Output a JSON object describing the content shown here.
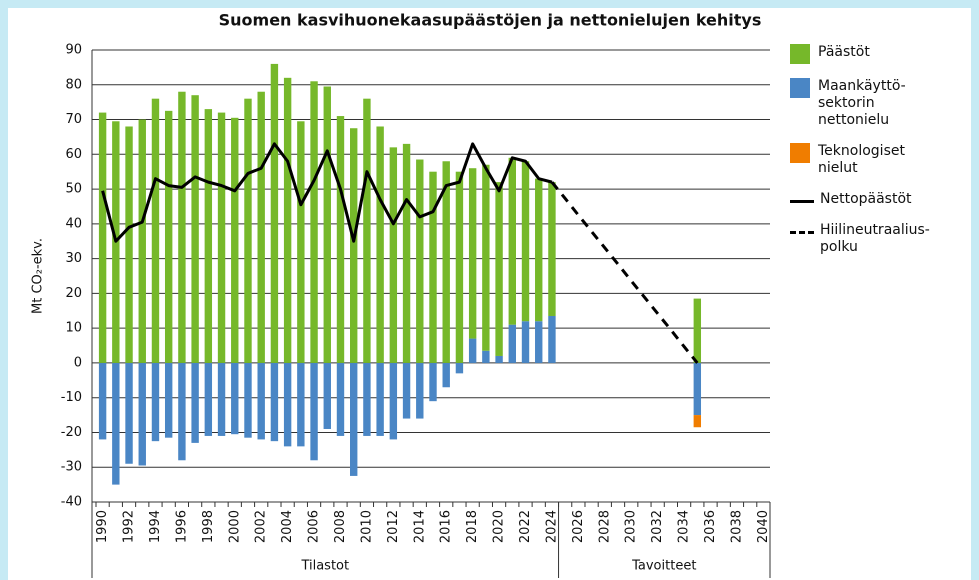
{
  "chart_data": {
    "type": "bar",
    "title": "Suomen kasvihuonekaasupäästöjen ja nettonielujen kehitys",
    "y_label": "Mt CO₂-ekv.",
    "categories": [
      "1990",
      null,
      "1992",
      null,
      "1994",
      null,
      "1996",
      null,
      "1998",
      null,
      "2000",
      null,
      "2002",
      null,
      "2004",
      null,
      "2006",
      null,
      "2008",
      null,
      "2010",
      null,
      "2012",
      null,
      "2014",
      null,
      "2016",
      null,
      "2018",
      null,
      "2020",
      null,
      "2022",
      null,
      "2024",
      null,
      "2026",
      null,
      "2028",
      null,
      "2030",
      null,
      "2032",
      null,
      "2034",
      null,
      "2036",
      null,
      "2038",
      null,
      "2040"
    ],
    "groups": [
      "Tilastot",
      "Tavoitteet"
    ],
    "ylim": [
      -40,
      90
    ],
    "yticks": [
      -40,
      -30,
      -20,
      -10,
      0,
      10,
      20,
      30,
      40,
      50,
      60,
      70,
      80,
      90
    ],
    "grid": true,
    "series": [
      {
        "name": "Päästöt",
        "type": "bar",
        "color": "#76b82a",
        "values": [
          72,
          69.5,
          68,
          70,
          76,
          72.5,
          78,
          77,
          73,
          72,
          70.5,
          76,
          78,
          86,
          82,
          69.5,
          81,
          79.5,
          71,
          67.5,
          76,
          68,
          62,
          63,
          58.5,
          55,
          58,
          55,
          49,
          53.5,
          50,
          48,
          46,
          41,
          38.5,
          null,
          null,
          null,
          null,
          null,
          null,
          null,
          null,
          null,
          null,
          18.5,
          null,
          null,
          null,
          null,
          null
        ]
      },
      {
        "name": "Maankäyttö-sektorin nettonielu",
        "type": "bar",
        "color": "#4a86c5",
        "values": [
          -22,
          -35,
          -29,
          -29.5,
          -22.5,
          -21.5,
          -28,
          -23,
          -21,
          -21,
          -20.5,
          -21.5,
          -22,
          -22.5,
          -24,
          -24,
          -28,
          -19,
          -21,
          -32.5,
          -21,
          -21,
          -22,
          -16,
          -16,
          -11,
          -7,
          -3,
          7,
          3.5,
          2,
          11,
          12,
          12,
          13.5,
          null,
          null,
          null,
          null,
          null,
          null,
          null,
          null,
          null,
          null,
          -15,
          null,
          null,
          null,
          null,
          null
        ]
      },
      {
        "name": "Teknologiset nielut",
        "type": "bar",
        "color": "#f07d00",
        "values": [
          null,
          null,
          null,
          null,
          null,
          null,
          null,
          null,
          null,
          null,
          null,
          null,
          null,
          null,
          null,
          null,
          null,
          null,
          null,
          null,
          null,
          null,
          null,
          null,
          null,
          null,
          null,
          null,
          null,
          null,
          null,
          null,
          null,
          null,
          null,
          null,
          null,
          null,
          null,
          null,
          null,
          null,
          null,
          null,
          null,
          -3.5,
          null,
          null,
          null,
          null,
          null
        ]
      },
      {
        "name": "Nettopäästöt",
        "type": "line",
        "color": "#000000",
        "dashed": false,
        "values": [
          49.5,
          35,
          39,
          40.5,
          53,
          51,
          50.5,
          53.5,
          52,
          51,
          49.5,
          54.5,
          56,
          63,
          58,
          45.5,
          52.5,
          61,
          50,
          35,
          55,
          47,
          40,
          47,
          42,
          43.5,
          51,
          52,
          63,
          56,
          49.5,
          59,
          58,
          53,
          52,
          null,
          null,
          null,
          null,
          null,
          null,
          null,
          null,
          null,
          null,
          null,
          null,
          null,
          null,
          null,
          null
        ]
      },
      {
        "name": "Hiilineutraalius-polku",
        "type": "line",
        "color": "#000000",
        "dashed": true,
        "values": [
          null,
          null,
          null,
          null,
          null,
          null,
          null,
          null,
          null,
          null,
          null,
          null,
          null,
          null,
          null,
          null,
          null,
          null,
          null,
          null,
          null,
          null,
          null,
          null,
          null,
          null,
          null,
          null,
          null,
          null,
          null,
          null,
          null,
          null,
          52,
          47.3,
          42.5,
          37.8,
          33.1,
          28.4,
          23.6,
          18.9,
          14.2,
          9.5,
          4.7,
          0,
          null,
          null,
          null,
          null,
          null
        ]
      }
    ]
  }
}
